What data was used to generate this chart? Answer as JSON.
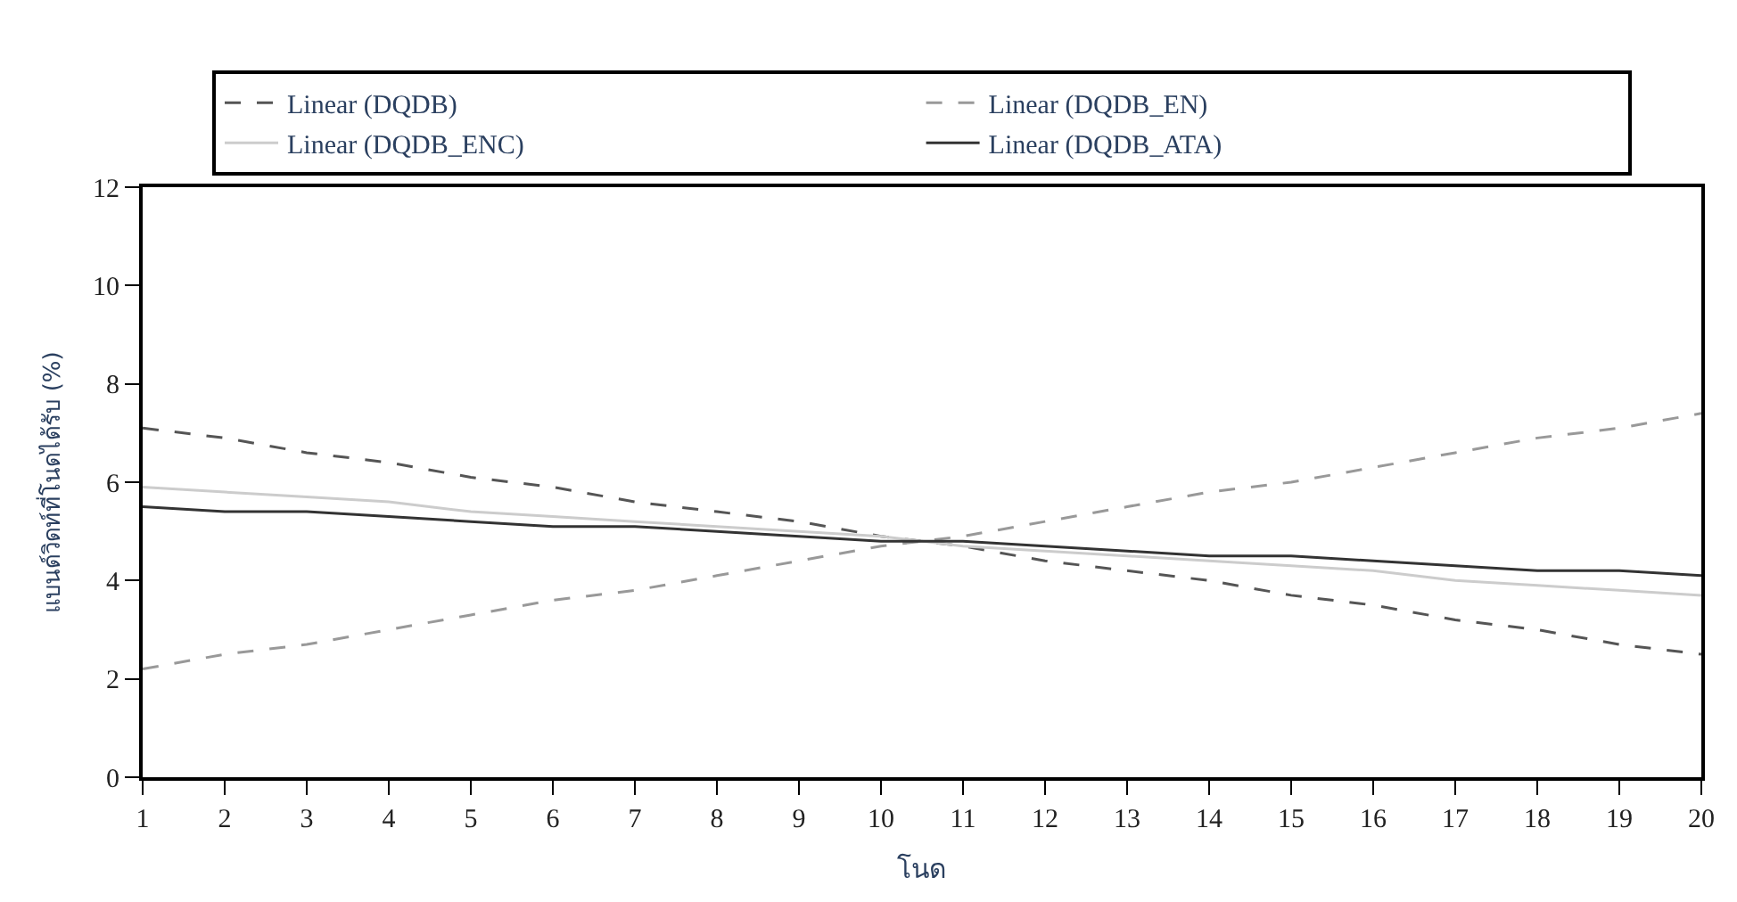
{
  "chart_data": {
    "type": "line",
    "xlabel": "โนด",
    "ylabel": "แบนด์วิดท์ที่โนดได้รับ (%)",
    "x": [
      1,
      2,
      3,
      4,
      5,
      6,
      7,
      8,
      9,
      10,
      11,
      12,
      13,
      14,
      15,
      16,
      17,
      18,
      19,
      20
    ],
    "xlim": [
      1,
      20
    ],
    "xticks": [
      1,
      2,
      3,
      4,
      5,
      6,
      7,
      8,
      9,
      10,
      11,
      12,
      13,
      14,
      15,
      16,
      17,
      18,
      19,
      20
    ],
    "ylim": [
      0,
      12
    ],
    "yticks": [
      0,
      2,
      4,
      6,
      8,
      10,
      12
    ],
    "legend": "top",
    "marker": "none",
    "series": [
      {
        "name": "Linear (DQDB)",
        "color": "#555555",
        "line_style": "dashed",
        "values": [
          7.1,
          6.9,
          6.6,
          6.4,
          6.1,
          5.9,
          5.6,
          5.4,
          5.2,
          4.9,
          4.7,
          4.4,
          4.2,
          4.0,
          3.7,
          3.5,
          3.2,
          3.0,
          2.7,
          2.5
        ]
      },
      {
        "name": "Linear (DQDB_EN)",
        "color": "#999999",
        "line_style": "dashed",
        "values": [
          2.2,
          2.5,
          2.7,
          3.0,
          3.3,
          3.6,
          3.8,
          4.1,
          4.4,
          4.7,
          4.9,
          5.2,
          5.5,
          5.8,
          6.0,
          6.3,
          6.6,
          6.9,
          7.1,
          7.4
        ]
      },
      {
        "name": "Linear (DQDB_ENC)",
        "color": "#cccccc",
        "line_style": "solid",
        "values": [
          5.9,
          5.8,
          5.7,
          5.6,
          5.4,
          5.3,
          5.2,
          5.1,
          5.0,
          4.9,
          4.7,
          4.6,
          4.5,
          4.4,
          4.3,
          4.2,
          4.0,
          3.9,
          3.8,
          3.7
        ]
      },
      {
        "name": "Linear (DQDB_ATA)",
        "color": "#333333",
        "line_style": "solid",
        "values": [
          5.5,
          5.4,
          5.4,
          5.3,
          5.2,
          5.1,
          5.1,
          5.0,
          4.9,
          4.8,
          4.8,
          4.7,
          4.6,
          4.5,
          4.5,
          4.4,
          4.3,
          4.2,
          4.2,
          4.1
        ]
      }
    ]
  }
}
